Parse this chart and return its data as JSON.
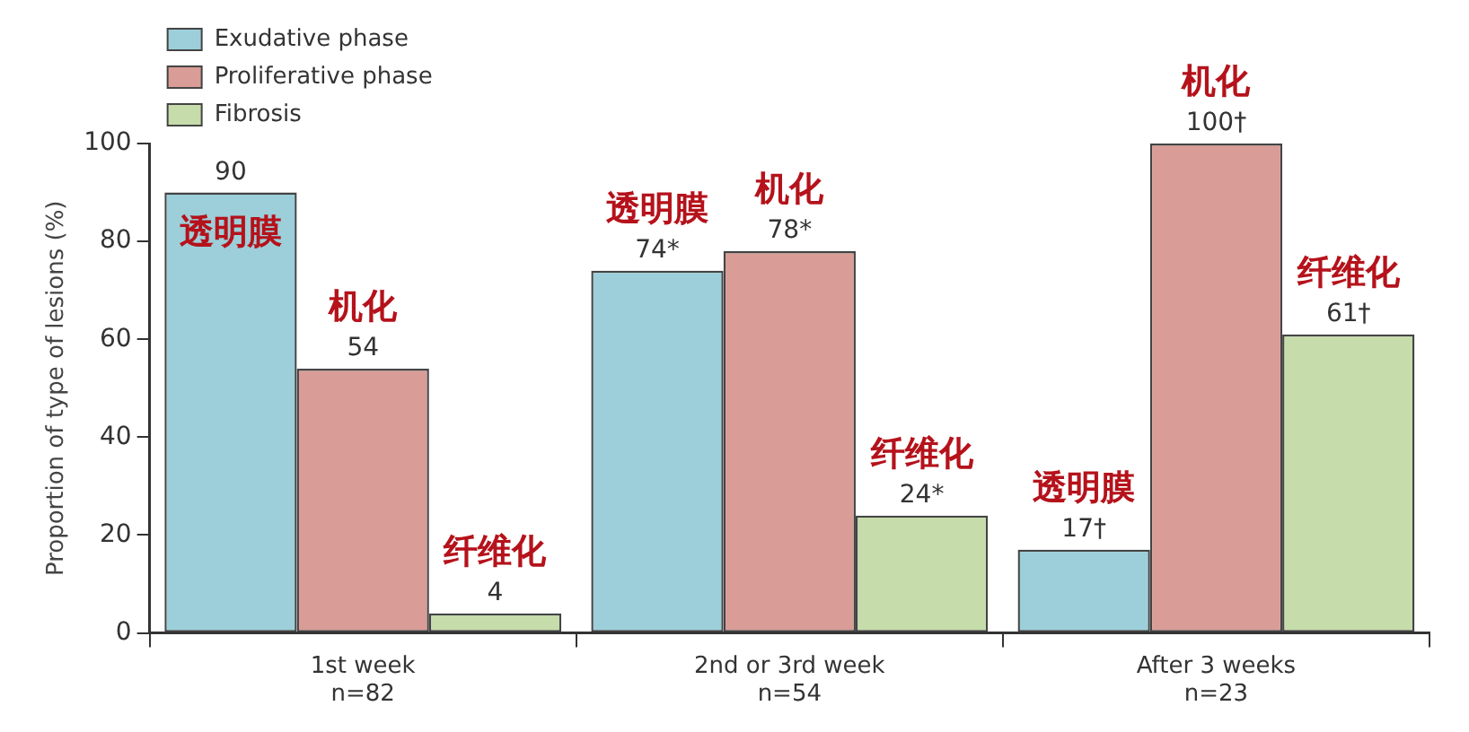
{
  "chart_data": {
    "type": "bar",
    "ylabel": "Proportion of type of lesions (%)",
    "categories": [
      "1st week\nn=82",
      "2nd or 3rd week\nn=54",
      "After 3 weeks\nn=23"
    ],
    "series": [
      {
        "name": "Exudative phase",
        "color": "#9ccfd9",
        "values": [
          90,
          74,
          17
        ],
        "value_labels": [
          "90",
          "74*",
          "17†"
        ]
      },
      {
        "name": "Proliferative phase",
        "color": "#d99c97",
        "values": [
          54,
          78,
          100
        ],
        "value_labels": [
          "54",
          "78*",
          "100†"
        ]
      },
      {
        "name": "Fibrosis",
        "color": "#c6dcaa",
        "values": [
          4,
          24,
          61
        ],
        "value_labels": [
          "4",
          "24*",
          "61†"
        ]
      }
    ],
    "ylim": [
      0,
      100
    ],
    "yticks": [
      0,
      20,
      40,
      60,
      80,
      100
    ],
    "grid": false,
    "legend": "top left",
    "annotations": [
      "透明膜",
      "机化",
      "纤维化",
      "透明膜",
      "机化",
      "纤维化",
      "透明膜",
      "机化",
      "纤维化"
    ]
  }
}
